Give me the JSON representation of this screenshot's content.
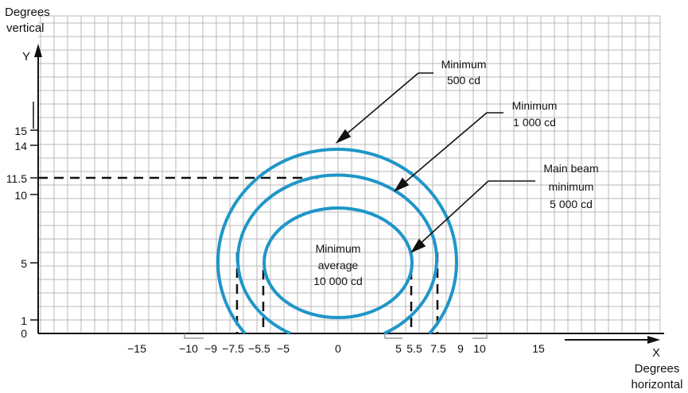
{
  "diagram": {
    "y_axis": {
      "letter": "Y",
      "title_lines": [
        "Degrees",
        "vertical"
      ]
    },
    "x_axis": {
      "letter": "X",
      "title_lines": [
        "Degrees",
        "horizontal"
      ]
    },
    "x_tick_labels": [
      "−15",
      "−10",
      "−9",
      "−7.5",
      "−5.5",
      "−5",
      "0",
      "5",
      "5.5",
      "7.5",
      "9",
      "10",
      "15"
    ],
    "y_tick_labels": [
      "15",
      "14",
      "11.5",
      "10",
      "5",
      "1",
      "0"
    ],
    "contours": [
      {
        "callout_lines": [
          "Minimum",
          "500 cd"
        ],
        "color": "#1f96c8"
      },
      {
        "callout_lines": [
          "Minimum",
          "1 000 cd"
        ],
        "color": "#1f96c8"
      },
      {
        "callout_lines": [
          "Main beam",
          "minimum",
          "5 000 cd"
        ],
        "color": "#1f96c8"
      }
    ],
    "center_label_lines": [
      "Minimum",
      "average",
      "10 000 cd"
    ],
    "grid_color": "#b8b8b8",
    "contour_color": "#1f96c8"
  }
}
